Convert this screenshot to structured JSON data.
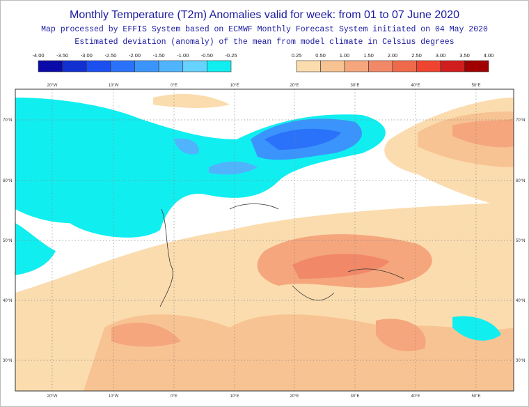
{
  "header": {
    "title": "Monthly Temperature (T2m) Anomalies valid for week: from 01 to 07 June 2020",
    "subtitle": "Map processed by EFFIS System based on ECMWF Monthly Forecast System initiated on 04 May 2020",
    "caption": "Estimated deviation (anomaly) of the mean from model climate in Celsius degrees"
  },
  "legend": {
    "negative": {
      "labels": [
        "-4.00",
        "-3.50",
        "-3.00",
        "-2.50",
        "-2.00",
        "-1.50",
        "-1.00",
        "-0.50",
        "-0.25"
      ],
      "colors": [
        "#0a0aa8",
        "#1230d0",
        "#1c4ff0",
        "#2a72fa",
        "#3a94fc",
        "#50b4fd",
        "#66d2fe",
        "#10eef0"
      ]
    },
    "positive": {
      "labels": [
        "0.25",
        "0.50",
        "1.00",
        "1.50",
        "2.00",
        "2.50",
        "3.00",
        "3.50",
        "4.00"
      ],
      "colors": [
        "#fbdcae",
        "#f8c392",
        "#f5a67c",
        "#f18868",
        "#ef6a4a",
        "#ee4430",
        "#d01e1e",
        "#a00000"
      ]
    }
  },
  "map": {
    "longitudes": [
      "20°W",
      "10°W",
      "0°E",
      "10°E",
      "20°E",
      "30°E",
      "40°E",
      "50°E"
    ],
    "latitudes": [
      "70°N",
      "60°N",
      "50°N",
      "40°N",
      "30°N"
    ]
  }
}
